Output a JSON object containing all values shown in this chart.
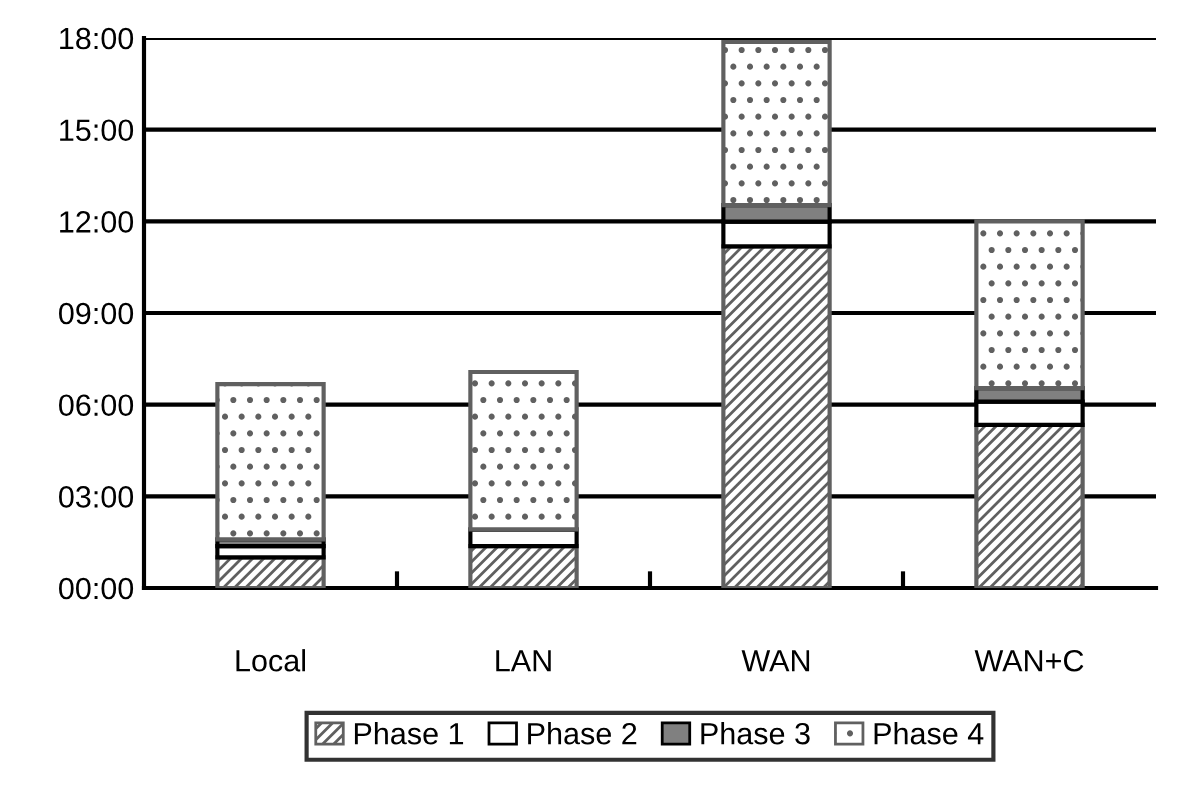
{
  "chart_data": {
    "type": "bar",
    "stacked": true,
    "categories": [
      "Local",
      "LAN",
      "WAN",
      "WAN+C"
    ],
    "series": [
      {
        "name": "Phase 1",
        "color": "#606060",
        "values": [
          1.0,
          1.37,
          11.18,
          5.34
        ]
      },
      {
        "name": "Phase 2",
        "color": "#ffffff",
        "values": [
          0.37,
          0.55,
          0.81,
          0.76
        ]
      },
      {
        "name": "Phase 3",
        "color": "#808080",
        "values": [
          0.22,
          0,
          0.54,
          0.44
        ]
      },
      {
        "name": "Phase 4",
        "color": "#606060",
        "values": [
          5.08,
          5.15,
          5.34,
          5.46
        ]
      }
    ],
    "ylim": [
      0,
      18
    ],
    "yticks": [
      {
        "value": 0,
        "label": "00:00"
      },
      {
        "value": 3,
        "label": "03:00"
      },
      {
        "value": 6,
        "label": "06:00"
      },
      {
        "value": 9,
        "label": "09:00"
      },
      {
        "value": 12,
        "label": "12:00"
      },
      {
        "value": 15,
        "label": "15:00"
      },
      {
        "value": 18,
        "label": "18:00"
      }
    ],
    "grid": "y",
    "legend": "bottom"
  }
}
